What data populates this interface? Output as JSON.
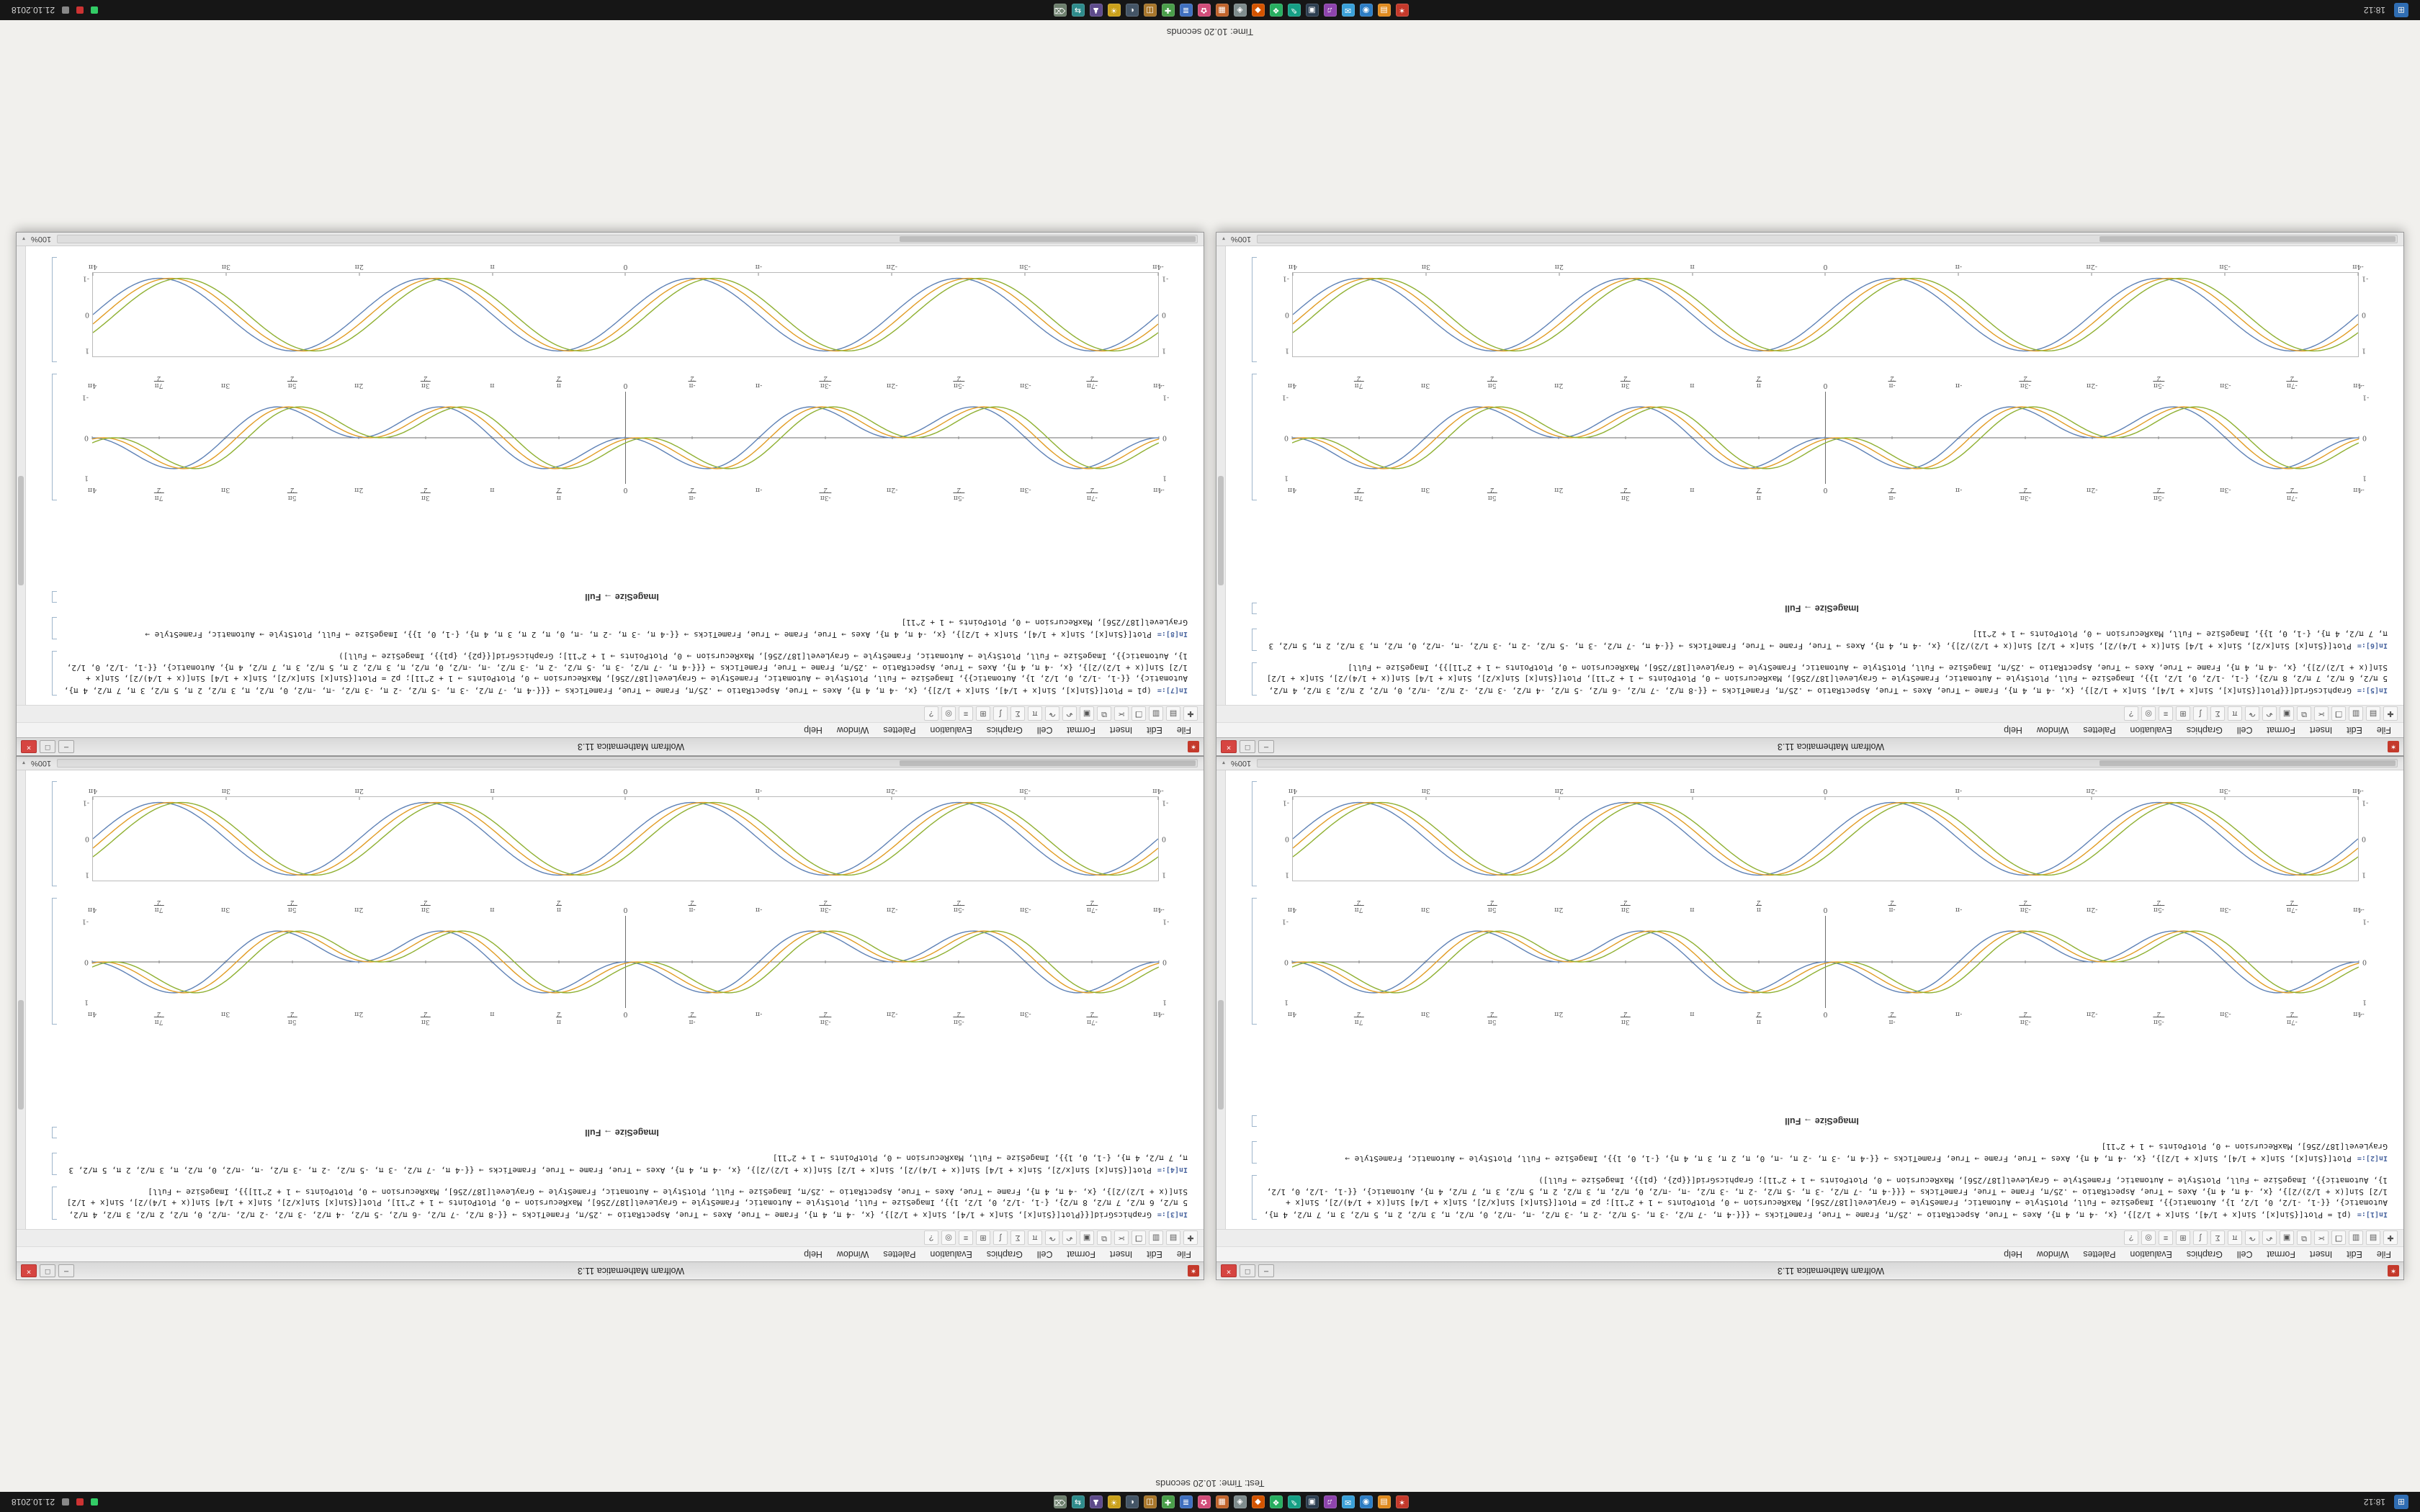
{
  "desktop": {
    "note_top": "Test: Time: 10.20 seconds",
    "note_bottom": "Time: 10.20 seconds",
    "top_panel": {
      "start_label": "⊞",
      "clock": "18:12",
      "date": "21.10.2018",
      "icons": [
        {
          "name": "mathematica",
          "glyph": "✶",
          "bg": "#c4392b"
        },
        {
          "name": "files",
          "glyph": "▤",
          "bg": "#e08a1e"
        },
        {
          "name": "browser",
          "glyph": "◉",
          "bg": "#2d7dc4"
        },
        {
          "name": "mail",
          "glyph": "✉",
          "bg": "#3aa0d8"
        },
        {
          "name": "music",
          "glyph": "♫",
          "bg": "#8e44ad"
        },
        {
          "name": "terminal",
          "glyph": "▣",
          "bg": "#2c3e50"
        },
        {
          "name": "editor",
          "glyph": "✎",
          "bg": "#16a085"
        },
        {
          "name": "chat",
          "glyph": "❖",
          "bg": "#27ae60"
        },
        {
          "name": "video",
          "glyph": "◆",
          "bg": "#d35400"
        },
        {
          "name": "settings",
          "glyph": "◈",
          "bg": "#7f8c8d"
        },
        {
          "name": "calendar",
          "glyph": "▦",
          "bg": "#c0632b"
        },
        {
          "name": "photos",
          "glyph": "✿",
          "bg": "#d24d7a"
        },
        {
          "name": "docs",
          "glyph": "≣",
          "bg": "#3f6fbf"
        },
        {
          "name": "calculator",
          "glyph": "✚",
          "bg": "#4a9e4a"
        },
        {
          "name": "archive",
          "glyph": "◫",
          "bg": "#a8762a"
        },
        {
          "name": "system-monitor",
          "glyph": "◐",
          "bg": "#445566"
        },
        {
          "name": "paint",
          "glyph": "☀",
          "bg": "#caa11b"
        },
        {
          "name": "games",
          "glyph": "♟",
          "bg": "#5e4b8b"
        },
        {
          "name": "network",
          "glyph": "⇆",
          "bg": "#2e8b8b"
        },
        {
          "name": "trash",
          "glyph": "⌫",
          "bg": "#6d7f6d"
        }
      ]
    },
    "bottom_panel": {
      "start_label": "⊞",
      "clock": "18:12",
      "date": "21.10.2018",
      "icons": [
        {
          "name": "mathematica",
          "glyph": "✶",
          "bg": "#c4392b"
        },
        {
          "name": "files",
          "glyph": "▤",
          "bg": "#e08a1e"
        },
        {
          "name": "browser",
          "glyph": "◉",
          "bg": "#2d7dc4"
        },
        {
          "name": "mail",
          "glyph": "✉",
          "bg": "#3aa0d8"
        },
        {
          "name": "music",
          "glyph": "♫",
          "bg": "#8e44ad"
        },
        {
          "name": "terminal",
          "glyph": "▣",
          "bg": "#2c3e50"
        },
        {
          "name": "editor",
          "glyph": "✎",
          "bg": "#16a085"
        },
        {
          "name": "chat",
          "glyph": "❖",
          "bg": "#27ae60"
        },
        {
          "name": "video",
          "glyph": "◆",
          "bg": "#d35400"
        },
        {
          "name": "settings",
          "glyph": "◈",
          "bg": "#7f8c8d"
        },
        {
          "name": "calendar",
          "glyph": "▦",
          "bg": "#c0632b"
        },
        {
          "name": "photos",
          "glyph": "✿",
          "bg": "#d24d7a"
        },
        {
          "name": "docs",
          "glyph": "≣",
          "bg": "#3f6fbf"
        },
        {
          "name": "calculator",
          "glyph": "✚",
          "bg": "#4a9e4a"
        },
        {
          "name": "archive",
          "glyph": "◫",
          "bg": "#a8762a"
        },
        {
          "name": "system-monitor",
          "glyph": "◐",
          "bg": "#445566"
        },
        {
          "name": "paint",
          "glyph": "☀",
          "bg": "#caa11b"
        },
        {
          "name": "games",
          "glyph": "♟",
          "bg": "#5e4b8b"
        },
        {
          "name": "network",
          "glyph": "⇆",
          "bg": "#2e8b8b"
        },
        {
          "name": "trash",
          "glyph": "⌫",
          "bg": "#6d7f6d"
        }
      ]
    }
  },
  "window_chrome": {
    "title": "Wolfram Mathematica 11.3",
    "zoom": "100%",
    "buttons": {
      "min": "–",
      "max": "□",
      "close": "×"
    },
    "menu": [
      "File",
      "Edit",
      "Insert",
      "Format",
      "Cell",
      "Graphics",
      "Evaluation",
      "Palettes",
      "Window",
      "Help"
    ],
    "toolbar": [
      {
        "name": "new",
        "g": "✚"
      },
      {
        "name": "open",
        "g": "▤"
      },
      {
        "name": "save",
        "g": "▥"
      },
      {
        "name": "print",
        "g": "❐"
      },
      {
        "name": "cut",
        "g": "✂"
      },
      {
        "name": "copy",
        "g": "⧉"
      },
      {
        "name": "paste",
        "g": "▣"
      },
      {
        "name": "undo",
        "g": "↶"
      },
      {
        "name": "redo",
        "g": "↷"
      },
      {
        "name": "input-style",
        "g": "π"
      },
      {
        "name": "sum",
        "g": "Σ"
      },
      {
        "name": "integral",
        "g": "∫"
      },
      {
        "name": "matrix",
        "g": "⊞"
      },
      {
        "name": "align",
        "g": "≡"
      },
      {
        "name": "find",
        "g": "◎"
      },
      {
        "name": "help",
        "g": "?"
      }
    ]
  },
  "plots": {
    "smooth": {
      "kind": "smooth",
      "framed": true,
      "h": 148,
      "label_top": false,
      "x_range_pi": [
        -4,
        4
      ],
      "colors": [
        "#5e81b5",
        "#e19c24",
        "#8fb032"
      ],
      "series": [
        {
          "name": "Sin[x]",
          "phase": 0
        },
        {
          "name": "Sin[x + 1/4]",
          "phase": 0.26
        },
        {
          "name": "Sin[x + 1/2]",
          "phase": 0.52
        }
      ],
      "xticks": [
        {
          "v": -4,
          "l": "-4π"
        },
        {
          "v": -3,
          "l": "-3π"
        },
        {
          "v": -2,
          "l": "-2π"
        },
        {
          "v": -1,
          "l": "-π"
        },
        {
          "v": 0,
          "l": "0"
        },
        {
          "v": 1,
          "l": "π"
        },
        {
          "v": 2,
          "l": "2π"
        },
        {
          "v": 3,
          "l": "3π"
        },
        {
          "v": 4,
          "l": "4π"
        }
      ],
      "yticks": [
        {
          "v": -1,
          "l": "-1"
        },
        {
          "v": 0,
          "l": "0"
        },
        {
          "v": 1,
          "l": "1"
        }
      ]
    },
    "petal": {
      "kind": "petal",
      "framed": false,
      "h": 178,
      "label_top": true,
      "envelope": "half",
      "x_range_pi": [
        -4,
        4
      ],
      "colors": [
        "#5e81b5",
        "#e19c24",
        "#8fb032"
      ],
      "series": [
        {
          "name": "Sin[x] Sin[x/2]",
          "phase": 0
        },
        {
          "name": "Sin[x + 1/4] Sin[(x + 1/4)/2]",
          "phase": 0.26
        },
        {
          "name": "Sin[x + 1/2] Sin[(x + 1/2)/2]",
          "phase": 0.52
        }
      ],
      "xticks": [
        {
          "v": -4,
          "l": "-4π"
        },
        {
          "v": -3.5,
          "l": "-7π/2"
        },
        {
          "v": -3,
          "l": "-3π"
        },
        {
          "v": -2.5,
          "l": "-5π/2"
        },
        {
          "v": -2,
          "l": "-2π"
        },
        {
          "v": -1.5,
          "l": "-3π/2"
        },
        {
          "v": -1,
          "l": "-π"
        },
        {
          "v": -0.5,
          "l": "-π/2"
        },
        {
          "v": 0,
          "l": "0"
        },
        {
          "v": 0.5,
          "l": "π/2"
        },
        {
          "v": 1,
          "l": "π"
        },
        {
          "v": 1.5,
          "l": "3π/2"
        },
        {
          "v": 2,
          "l": "2π"
        },
        {
          "v": 2.5,
          "l": "5π/2"
        },
        {
          "v": 3,
          "l": "3π"
        },
        {
          "v": 3.5,
          "l": "7π/2"
        },
        {
          "v": 4,
          "l": "4π"
        }
      ],
      "yticks": [
        {
          "v": -1,
          "l": "-1"
        },
        {
          "v": 0,
          "l": "0"
        },
        {
          "v": 1,
          "l": "1"
        }
      ]
    }
  },
  "windows": [
    {
      "cells": [
        {
          "type": "input",
          "label": "In[1]:=",
          "code": "(p1 = Plot[{Sin[x], Sin[x + 1/4], Sin[x + 1/2]}, {x, -4 π, 4 π}, Axes → True, AspectRatio → .25/π, Frame → True, FrameTicks → {{{-4 π, -7 π/2, -3 π, -5 π/2, -2 π, -3 π/2, -π, -π/2, 0, π/2, π, 3 π/2, 2 π, 5 π/2, 3 π, 7 π/2, 4 π}, Automatic}, {{-1, -1/2, 0, 1/2, 1}, Automatic}}, ImageSize → Full, PlotStyle → Automatic, FrameStyle → GrayLevel[187/256], MaxRecursion → 0, PlotPoints → 1 + 2^11]; p2 = Plot[{Sin[x] Sin[x/2], Sin[x + 1/4] Sin[(x + 1/4)/2], Sin[x + 1/2] Sin[(x + 1/2)/2]}, {x, -4 π, 4 π}, Axes → True, AspectRatio → .25/π, Frame → True, FrameTicks → {{{-4 π, -7 π/2, -3 π, -5 π/2, -2 π, -3 π/2, -π, -π/2, 0, π/2, π, 3 π/2, 2 π, 5 π/2, 3 π, 7 π/2, 4 π}, Automatic}, {{-1, -1/2, 0, 1/2, 1}, Automatic}}, ImageSize → Full, PlotStyle → Automatic, FrameStyle → GrayLevel[187/256], MaxRecursion → 0, PlotPoints → 1 + 2^11]; GraphicsGrid[{{p2}, {p1}}, ImageSize → Full])"
        },
        {
          "type": "input",
          "label": "In[2]:=",
          "code": "Plot[{Sin[x], Sin[x + 1/4], Sin[x + 1/2]}, {x, -4 π, 4 π}, Axes → True, Frame → True, FrameTicks → {{-4 π, -3 π, -2 π, -π, 0, π, 2 π, 3 π, 4 π}, {-1, 0, 1}}, ImageSize → Full, PlotStyle → Automatic, FrameStyle → GrayLevel[187/256], MaxRecursion → 0, PlotPoints → 1 + 2^11]"
        },
        {
          "type": "text",
          "code": "ImageSize → Full"
        },
        {
          "type": "plot",
          "plot": "petal"
        },
        {
          "type": "plot",
          "plot": "smooth"
        }
      ]
    },
    {
      "cells": [
        {
          "type": "input",
          "label": "In[3]:=",
          "code": "GraphicsGrid[{{Plot[{Sin[x], Sin[x + 1/4], Sin[x + 1/2]}, {x, -4 π, 4 π}, Frame → True, Axes → True, AspectRatio → .25/π, FrameTicks → {{-8 π/2, -7 π/2, -6 π/2, -5 π/2, -4 π/2, -3 π/2, -2 π/2, -π/2, 0, π/2, 2 π/2, 3 π/2, 4 π/2, 5 π/2, 6 π/2, 7 π/2, 8 π/2}, {-1, -1/2, 0, 1/2, 1}}, ImageSize → Full, PlotStyle → Automatic, FrameStyle → GrayLevel[187/256], MaxRecursion → 0, PlotPoints → 1 + 2^11], Plot[{Sin[x] Sin[x/2], Sin[x + 1/4] Sin[(x + 1/4)/2], Sin[x + 1/2] Sin[(x + 1/2)/2]}, {x, -4 π, 4 π}, Frame → True, Axes → True, AspectRatio → .25/π, ImageSize → Full, PlotStyle → Automatic, FrameStyle → GrayLevel[187/256], MaxRecursion → 0, PlotPoints → 1 + 2^11]}}, ImageSize → Full]"
        },
        {
          "type": "input",
          "label": "In[4]:=",
          "code": "Plot[{Sin[x] Sin[x/2], Sin[x + 1/4] Sin[(x + 1/4)/2], Sin[x + 1/2] Sin[(x + 1/2)/2]}, {x, -4 π, 4 π}, Axes → True, Frame → True, FrameTicks → {{-4 π, -7 π/2, -3 π, -5 π/2, -2 π, -3 π/2, -π, -π/2, 0, π/2, π, 3 π/2, 2 π, 5 π/2, 3 π, 7 π/2, 4 π}, {-1, 0, 1}}, ImageSize → Full, MaxRecursion → 0, PlotPoints → 1 + 2^11]"
        },
        {
          "type": "text",
          "code": "ImageSize → Full"
        },
        {
          "type": "plot",
          "plot": "petal"
        },
        {
          "type": "plot",
          "plot": "smooth"
        }
      ]
    },
    {
      "cells": [
        {
          "type": "input",
          "label": "In[5]:=",
          "code": "GraphicsGrid[{{Plot[{Sin[x], Sin[x + 1/4], Sin[x + 1/2]}, {x, -4 π, 4 π}, Frame → True, Axes → True, AspectRatio → .25/π, FrameTicks → {{-8 π/2, -7 π/2, -6 π/2, -5 π/2, -4 π/2, -3 π/2, -2 π/2, -π/2, 0, π/2, 2 π/2, 3 π/2, 4 π/2, 5 π/2, 6 π/2, 7 π/2, 8 π/2}, {-1, -1/2, 0, 1/2, 1}}, ImageSize → Full, PlotStyle → Automatic, FrameStyle → GrayLevel[187/256], MaxRecursion → 0, PlotPoints → 1 + 2^11], Plot[{Sin[x] Sin[x/2], Sin[x + 1/4] Sin[(x + 1/4)/2], Sin[x + 1/2] Sin[(x + 1/2)/2]}, {x, -4 π, 4 π}, Frame → True, Axes → True, AspectRatio → .25/π, ImageSize → Full, PlotStyle → Automatic, FrameStyle → GrayLevel[187/256], MaxRecursion → 0, PlotPoints → 1 + 2^11]}}, ImageSize → Full]"
        },
        {
          "type": "input",
          "label": "In[6]:=",
          "code": "Plot[{Sin[x] Sin[x/2], Sin[x + 1/4] Sin[(x + 1/4)/2], Sin[x + 1/2] Sin[(x + 1/2)/2]}, {x, -4 π, 4 π}, Axes → True, Frame → True, FrameTicks → {{-4 π, -7 π/2, -3 π, -5 π/2, -2 π, -3 π/2, -π, -π/2, 0, π/2, π, 3 π/2, 2 π, 5 π/2, 3 π, 7 π/2, 4 π}, {-1, 0, 1}}, ImageSize → Full, MaxRecursion → 0, PlotPoints → 1 + 2^11]"
        },
        {
          "type": "text",
          "code": "ImageSize → Full"
        },
        {
          "type": "plot",
          "plot": "petal"
        },
        {
          "type": "plot",
          "plot": "smooth"
        }
      ]
    },
    {
      "cells": [
        {
          "type": "input",
          "label": "In[7]:=",
          "code": "(p1 = Plot[{Sin[x], Sin[x + 1/4], Sin[x + 1/2]}, {x, -4 π, 4 π}, Axes → True, AspectRatio → .25/π, Frame → True, FrameTicks → {{{-4 π, -7 π/2, -3 π, -5 π/2, -2 π, -3 π/2, -π, -π/2, 0, π/2, π, 3 π/2, 2 π, 5 π/2, 3 π, 7 π/2, 4 π}, Automatic}, {{-1, -1/2, 0, 1/2, 1}, Automatic}}, ImageSize → Full, PlotStyle → Automatic, FrameStyle → GrayLevel[187/256], MaxRecursion → 0, PlotPoints → 1 + 2^11]; p2 = Plot[{Sin[x] Sin[x/2], Sin[x + 1/4] Sin[(x + 1/4)/2], Sin[x + 1/2] Sin[(x + 1/2)/2]}, {x, -4 π, 4 π}, Axes → True, AspectRatio → .25/π, Frame → True, FrameTicks → {{{-4 π, -7 π/2, -3 π, -5 π/2, -2 π, -3 π/2, -π, -π/2, 0, π/2, π, 3 π/2, 2 π, 5 π/2, 3 π, 7 π/2, 4 π}, Automatic}, {{-1, -1/2, 0, 1/2, 1}, Automatic}}, ImageSize → Full, PlotStyle → Automatic, FrameStyle → GrayLevel[187/256], MaxRecursion → 0, PlotPoints → 1 + 2^11]; GraphicsGrid[{{p2}, {p1}}, ImageSize → Full])"
        },
        {
          "type": "input",
          "label": "In[8]:=",
          "code": "Plot[{Sin[x], Sin[x + 1/4], Sin[x + 1/2]}, {x, -4 π, 4 π}, Axes → True, Frame → True, FrameTicks → {{-4 π, -3 π, -2 π, -π, 0, π, 2 π, 3 π, 4 π}, {-1, 0, 1}}, ImageSize → Full, PlotStyle → Automatic, FrameStyle → GrayLevel[187/256], MaxRecursion → 0, PlotPoints → 1 + 2^11]"
        },
        {
          "type": "text",
          "code": "ImageSize → Full"
        },
        {
          "type": "plot",
          "plot": "petal"
        },
        {
          "type": "plot",
          "plot": "smooth"
        }
      ]
    }
  ]
}
